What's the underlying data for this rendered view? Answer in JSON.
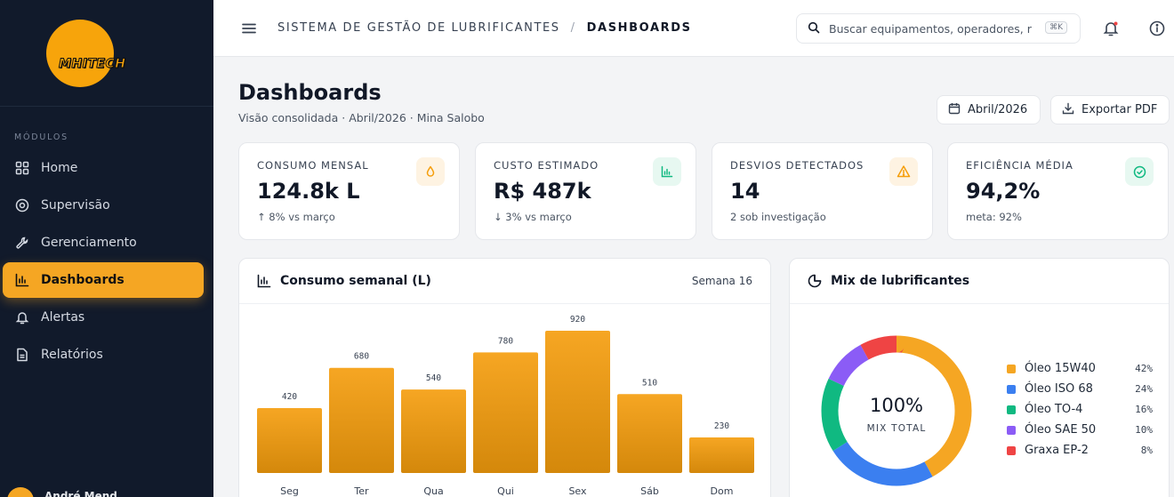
{
  "brand": {
    "logo_text": "MHITECH",
    "accent": "#f5a623"
  },
  "sidebar": {
    "section_label": "MÓDULOS",
    "items": [
      {
        "label": "Home",
        "icon": "grid-icon",
        "active": false
      },
      {
        "label": "Supervisão",
        "icon": "target-icon",
        "active": false
      },
      {
        "label": "Gerenciamento",
        "icon": "wrench-icon",
        "active": false
      },
      {
        "label": "Dashboards",
        "icon": "bar-chart-icon",
        "active": true
      },
      {
        "label": "Alertas",
        "icon": "bell-icon",
        "active": false
      },
      {
        "label": "Relatórios",
        "icon": "file-icon",
        "active": false
      }
    ],
    "user_name": "André Mend"
  },
  "header": {
    "breadcrumb_root": "SISTEMA DE GESTÃO DE LUBRIFICANTES",
    "breadcrumb_sep": "/",
    "breadcrumb_current": "DASHBOARDS",
    "search_placeholder": "Buscar equipamentos, operadores, r",
    "search_shortcut": "⌘K"
  },
  "page": {
    "title": "Dashboards",
    "subtitle": "Visão consolidada · Abril/2026 · Mina Salobo",
    "month_button": "Abril/2026",
    "export_button": "Exportar PDF"
  },
  "kpis": [
    {
      "label": "CONSUMO MENSAL",
      "value": "124.8k L",
      "note": "↑ 8% vs março",
      "icon": "drop-icon",
      "color": "#f59e0b",
      "bg": "#fef3e2"
    },
    {
      "label": "CUSTO ESTIMADO",
      "value": "R$ 487k",
      "note": "↓ 3% vs março",
      "icon": "bar-chart-icon",
      "color": "#10b981",
      "bg": "#e7f8f1"
    },
    {
      "label": "DESVIOS DETECTADOS",
      "value": "14",
      "note": "2 sob investigação",
      "icon": "warning-icon",
      "color": "#f59e0b",
      "bg": "#fef3e2"
    },
    {
      "label": "EFICIÊNCIA MÉDIA",
      "value": "94,2%",
      "note": "meta: 92%",
      "icon": "check-circle-icon",
      "color": "#10b981",
      "bg": "#e7f8f1"
    }
  ],
  "weekly": {
    "title": "Consumo semanal (L)",
    "week_label": "Semana 16"
  },
  "mix": {
    "title": "Mix de lubrificantes",
    "center_value": "100%",
    "center_label": "MIX TOTAL"
  },
  "chart_data": [
    {
      "type": "bar",
      "title": "Consumo semanal (L)",
      "categories": [
        "Seg",
        "Ter",
        "Qua",
        "Qui",
        "Sex",
        "Sáb",
        "Dom"
      ],
      "values": [
        420,
        680,
        540,
        780,
        920,
        510,
        230
      ],
      "value_labels": [
        "420",
        "680",
        "540",
        "780",
        "920",
        "510",
        "230"
      ],
      "ylim": [
        0,
        1000
      ],
      "grid": false,
      "color": "#f5a623"
    },
    {
      "type": "pie",
      "title": "Mix de lubrificantes",
      "legend_position": "right",
      "slices": [
        {
          "name": "Óleo 15W40",
          "value": 42,
          "label": "42%",
          "color": "#f5a623"
        },
        {
          "name": "Óleo ISO 68",
          "value": 24,
          "label": "24%",
          "color": "#3b7ff0"
        },
        {
          "name": "Óleo TO-4",
          "value": 16,
          "label": "16%",
          "color": "#10b981"
        },
        {
          "name": "Óleo SAE 50",
          "value": 10,
          "label": "10%",
          "color": "#8b5cf6"
        },
        {
          "name": "Graxa EP-2",
          "value": 8,
          "label": "8%",
          "color": "#ef4444"
        }
      ]
    }
  ]
}
